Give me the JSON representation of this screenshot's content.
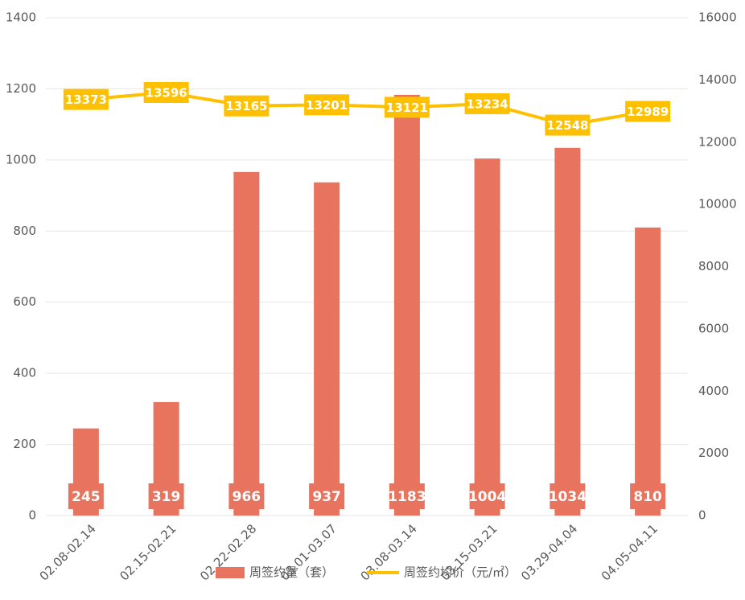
{
  "chart_data": {
    "type": "bar_line",
    "categories": [
      "02.08-02.14",
      "02.15-02.21",
      "02.22-02.28",
      "03.01-03.07",
      "03.08-03.14",
      "03.15-03.21",
      "03.29-04.04",
      "04.05-04.11"
    ],
    "series": [
      {
        "name": "周签约量（套）",
        "color": "#e8735f",
        "type": "bar",
        "values": [
          245,
          319,
          966,
          937,
          1183,
          1004,
          1034,
          810
        ]
      },
      {
        "name": "周签约均价（元/㎡）",
        "color": "#ffc000",
        "type": "line",
        "axis": "y2",
        "values": [
          13373,
          13596,
          13165,
          13201,
          13121,
          13234,
          12548,
          12989
        ]
      }
    ],
    "ylim": [
      0,
      1400
    ],
    "yticks": [
      0,
      200,
      400,
      600,
      800,
      1000,
      1200,
      1400
    ],
    "y2lim": [
      0,
      16000
    ],
    "y2ticks": [
      0,
      2000,
      4000,
      6000,
      8000,
      10000,
      12000,
      14000,
      16000
    ],
    "grid": true
  }
}
